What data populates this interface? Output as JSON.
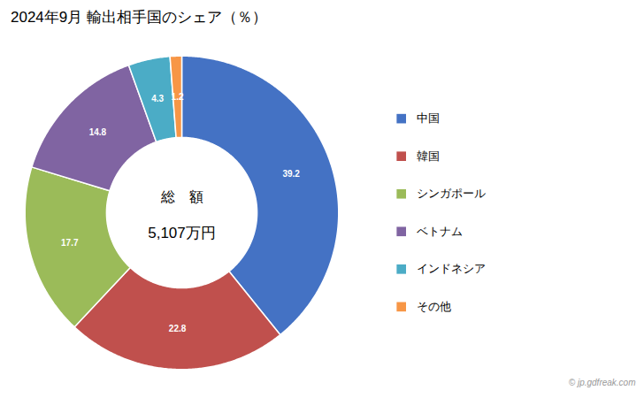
{
  "chart_data": {
    "type": "pie",
    "title": "2024年9月 輸出相手国のシェア（％）",
    "categories": [
      "中国",
      "韓国",
      "シンガポール",
      "ベトナム",
      "インドネシア",
      "その他"
    ],
    "values": [
      39.2,
      22.8,
      17.7,
      14.8,
      4.3,
      1.2
    ],
    "colors": [
      "#4472C4",
      "#C0504D",
      "#9BBB59",
      "#8064A2",
      "#4BACC6",
      "#F79646"
    ],
    "data_labels": true,
    "legend": "right",
    "annotations": [
      "総　額",
      "5,107万円",
      "© jp.gdfreak.com"
    ]
  }
}
